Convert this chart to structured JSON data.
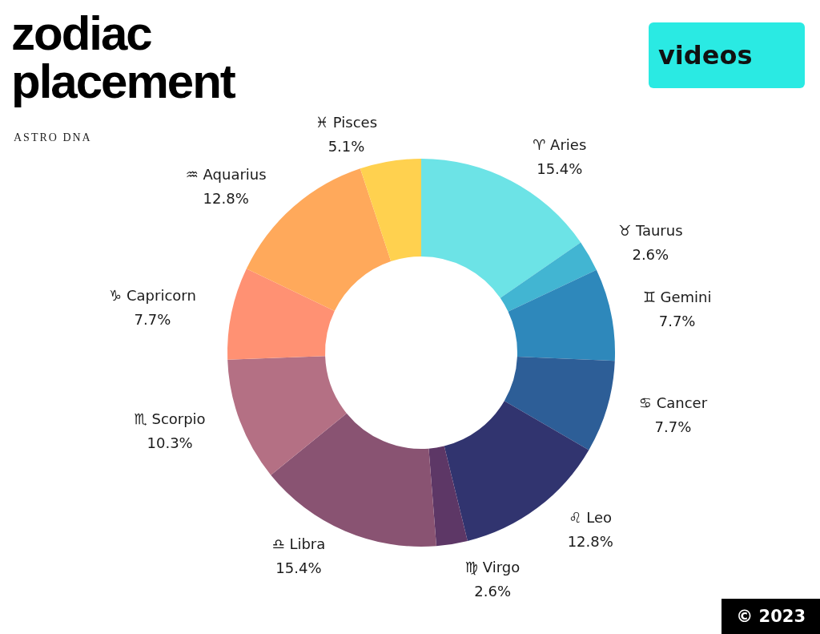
{
  "chart_data": {
    "type": "donut",
    "title": "zodiac placement",
    "subtitle": "ASTRO DNA",
    "annotations": [
      "videos",
      "© 2023"
    ],
    "categories": [
      "♈ Aries",
      "♉ Taurus",
      "♊ Gemini",
      "♋ Cancer",
      "♌ Leo",
      "♍ Virgo",
      "♎ Libra",
      "♏ Scorpio",
      "♑ Capricorn",
      "♒ Aquarius",
      "♓ Pisces"
    ],
    "values": [
      15.4,
      2.6,
      7.7,
      7.7,
      12.8,
      2.6,
      15.4,
      10.3,
      7.7,
      12.8,
      5.1
    ],
    "value_labels": [
      "15.4%",
      "2.6%",
      "7.7%",
      "7.7%",
      "12.8%",
      "2.6%",
      "15.4%",
      "10.3%",
      "7.7%",
      "12.8%",
      "5.1%"
    ],
    "colors": [
      "#6ce3e6",
      "#42b5d2",
      "#2e88bb",
      "#2d5e97",
      "#31346f",
      "#5d3766",
      "#895372",
      "#b47084",
      "#ff9173",
      "#ffa95b",
      "#ffd14f"
    ]
  }
}
